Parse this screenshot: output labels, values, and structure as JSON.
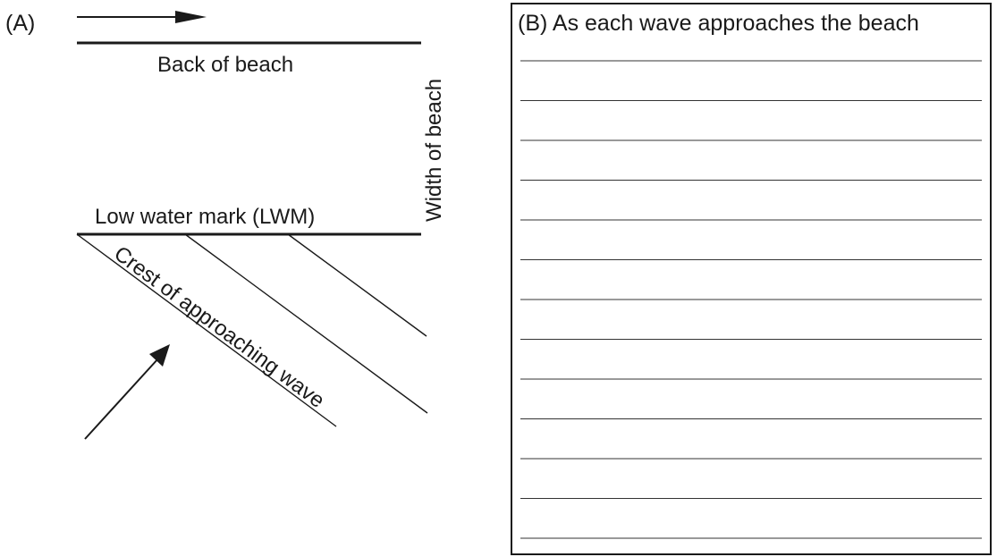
{
  "panel_a": {
    "label": "(A)",
    "back_of_beach": "Back of beach",
    "width_of_beach": "Width of beach",
    "low_water_mark": "Low water mark (LWM)",
    "wave_crest": "Crest of approaching wave"
  },
  "panel_b": {
    "heading": "(B) As each wave approaches the beach",
    "writing_lines": 13
  }
}
